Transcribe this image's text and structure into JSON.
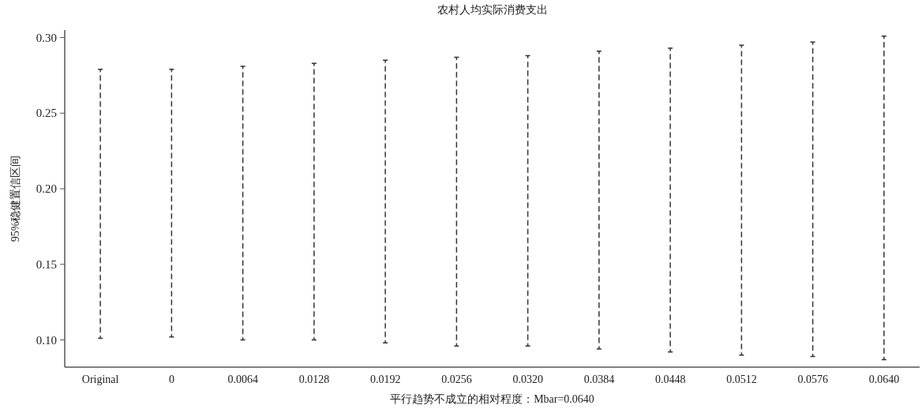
{
  "chart_data": {
    "type": "bar",
    "title": "农村人均实际消费支出",
    "xlabel": "平行趋势不成立的相对程度：Mbar=0.0640",
    "ylabel": "95%稳健置信区间",
    "categories": [
      "Original",
      "0",
      "0.0064",
      "0.0128",
      "0.0192",
      "0.0256",
      "0.0320",
      "0.0384",
      "0.0448",
      "0.0512",
      "0.0576",
      "0.0640"
    ],
    "base": [
      0.101,
      0.102,
      0.1,
      0.1,
      0.098,
      0.096,
      0.096,
      0.094,
      0.092,
      0.09,
      0.089,
      0.087
    ],
    "values": [
      0.178,
      0.177,
      0.181,
      0.183,
      0.187,
      0.191,
      0.192,
      0.197,
      0.201,
      0.205,
      0.208,
      0.214
    ],
    "color": "#333333",
    "line_style": "dashed",
    "grid": false,
    "legend": false,
    "ylim": [
      0.082,
      0.305
    ],
    "yticks": [
      {
        "value": 0.1,
        "label": "0.10"
      },
      {
        "value": 0.15,
        "label": "0.15"
      },
      {
        "value": 0.2,
        "label": "0.20"
      },
      {
        "value": 0.25,
        "label": "0.25"
      },
      {
        "value": 0.3,
        "label": "0.30"
      }
    ]
  }
}
